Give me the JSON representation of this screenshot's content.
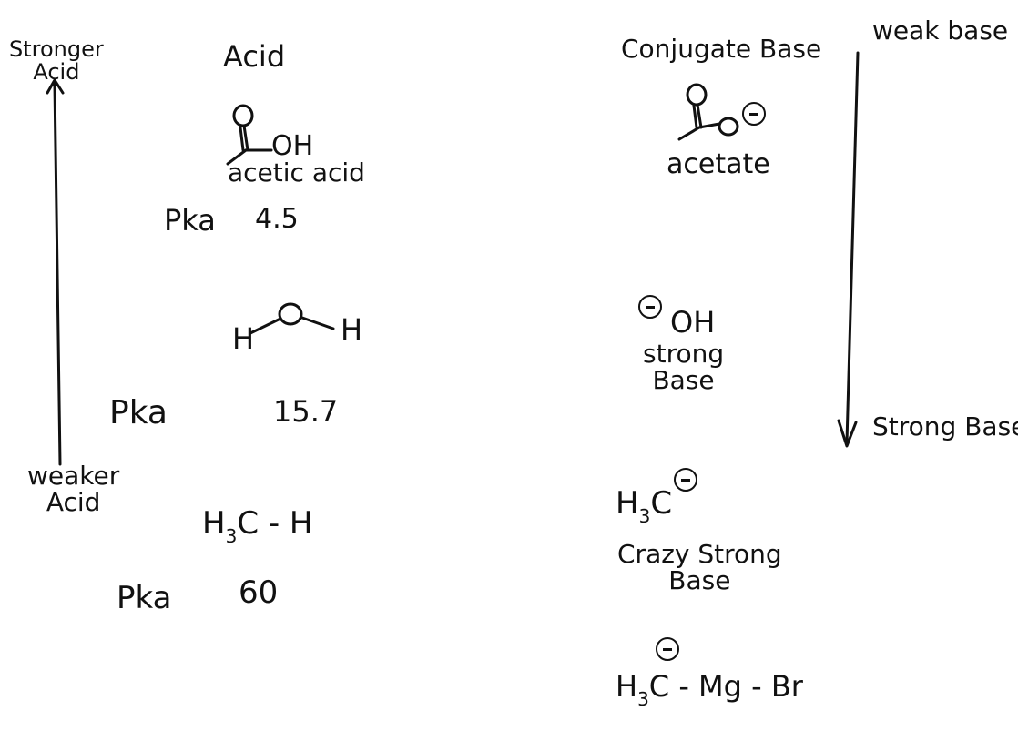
{
  "left_axis": {
    "top_label_line1": "Stronger",
    "top_label_line2": "Acid",
    "bottom_label_line1": "weaker",
    "bottom_label_line2": "Acid"
  },
  "right_axis": {
    "top_label": "weak base",
    "bottom_label": "Strong Base"
  },
  "headers": {
    "acid": "Acid",
    "conjugate_base": "Conjugate Base"
  },
  "acids": [
    {
      "name": "acetic acid",
      "pka_label": "Pka",
      "pka_value": "4.5",
      "formula_atom": "OH"
    },
    {
      "atom_left": "H",
      "atom_right": "H",
      "pka_label": "Pka",
      "pka_value": "15.7"
    },
    {
      "formula_prefix": "H",
      "formula_sub": "3",
      "formula_rest": "C - H",
      "pka_label": "Pka",
      "pka_value": "60"
    }
  ],
  "bases": [
    {
      "name": "acetate"
    },
    {
      "formula": "OH",
      "desc_line1": "strong",
      "desc_line2": "Base"
    },
    {
      "formula_prefix": "H",
      "formula_sub": "3",
      "formula_rest": "C",
      "desc_line1": "Crazy Strong",
      "desc_line2": "Base"
    },
    {
      "formula_prefix": "H",
      "formula_sub": "3",
      "formula_rest": "C - Mg - Br"
    }
  ]
}
